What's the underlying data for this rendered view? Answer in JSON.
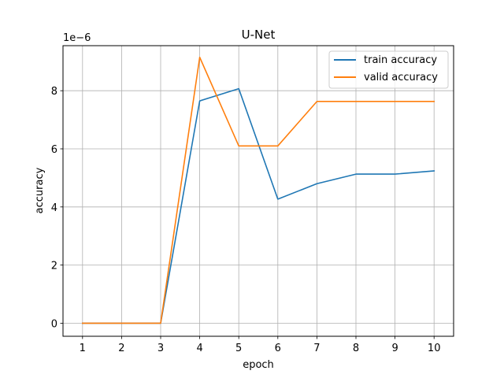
{
  "chart_data": {
    "type": "line",
    "title": "U-Net",
    "xlabel": "epoch",
    "ylabel": "accuracy",
    "y_offset_label": "1e−6",
    "x": [
      1,
      2,
      3,
      4,
      5,
      6,
      7,
      8,
      9,
      10
    ],
    "xlim": [
      0.5,
      10.5
    ],
    "ylim": [
      -0.45,
      9.55
    ],
    "y_scale_factor": 1e-06,
    "x_ticks": [
      1,
      2,
      3,
      4,
      5,
      6,
      7,
      8,
      9,
      10
    ],
    "y_ticks": [
      0,
      2,
      4,
      6,
      8
    ],
    "grid": true,
    "legend_position": "top-right",
    "series": [
      {
        "name": "train accuracy",
        "color": "#1f77b4",
        "values": [
          0,
          0,
          0,
          7.65,
          8.07,
          4.27,
          4.8,
          5.13,
          5.13,
          5.24
        ]
      },
      {
        "name": "valid accuracy",
        "color": "#ff7f0e",
        "values": [
          0,
          0,
          0,
          9.15,
          6.1,
          6.1,
          7.63,
          7.63,
          7.63,
          7.63
        ]
      }
    ]
  }
}
